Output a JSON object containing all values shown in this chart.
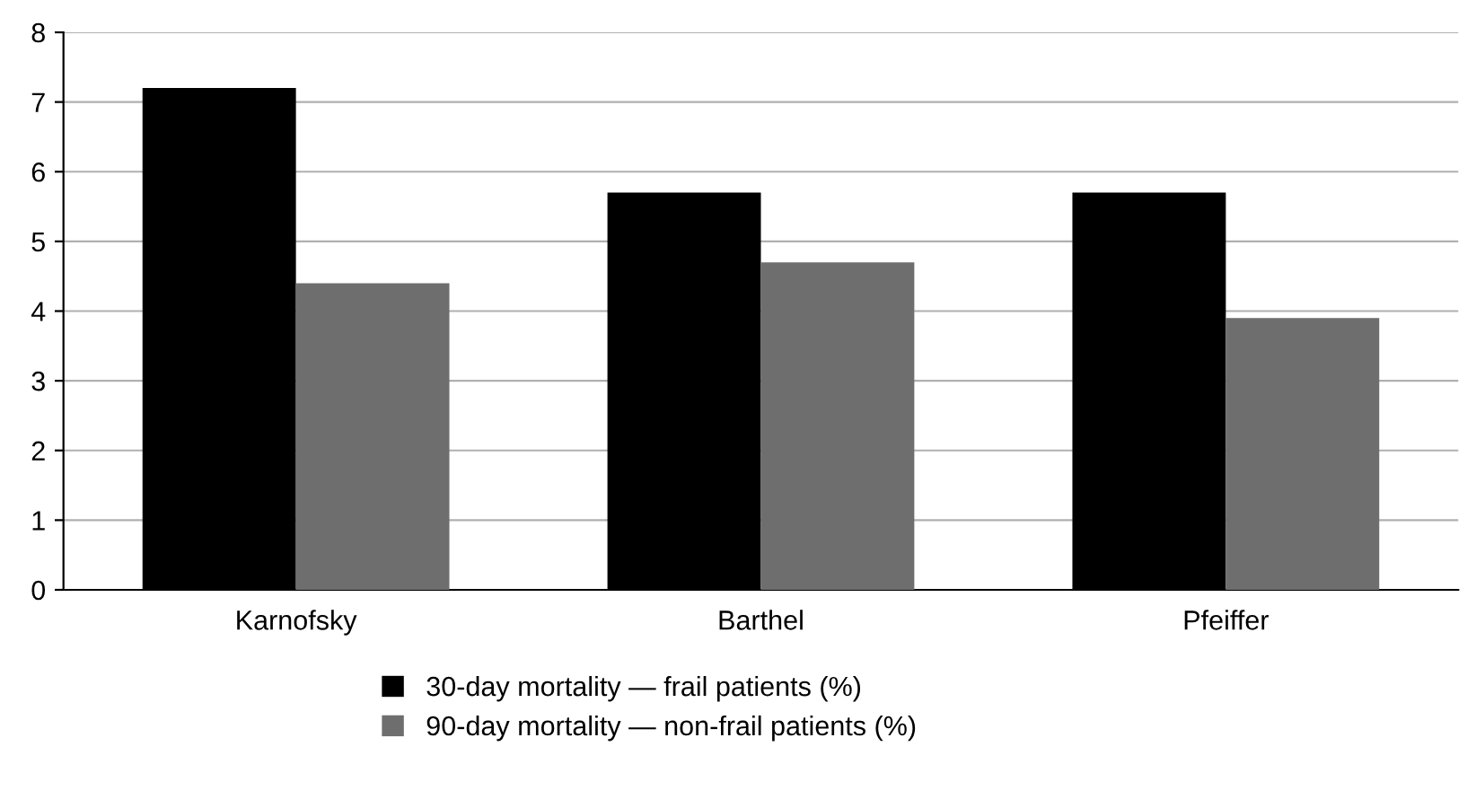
{
  "chart_data": {
    "type": "bar",
    "categories": [
      "Karnofsky",
      "Barthel",
      "Pfeiffer"
    ],
    "series": [
      {
        "name": "30-day mortality — frail patients (%)",
        "color": "#000000",
        "values": [
          7.2,
          5.7,
          5.7
        ]
      },
      {
        "name": "90-day mortality — non-frail patients (%)",
        "color": "#6e6e6e",
        "values": [
          4.4,
          4.7,
          3.9
        ]
      }
    ],
    "ylim": [
      0,
      8
    ],
    "yticks": [
      0,
      1,
      2,
      3,
      4,
      5,
      6,
      7,
      8
    ],
    "grid": "y",
    "legend": "bottom"
  }
}
